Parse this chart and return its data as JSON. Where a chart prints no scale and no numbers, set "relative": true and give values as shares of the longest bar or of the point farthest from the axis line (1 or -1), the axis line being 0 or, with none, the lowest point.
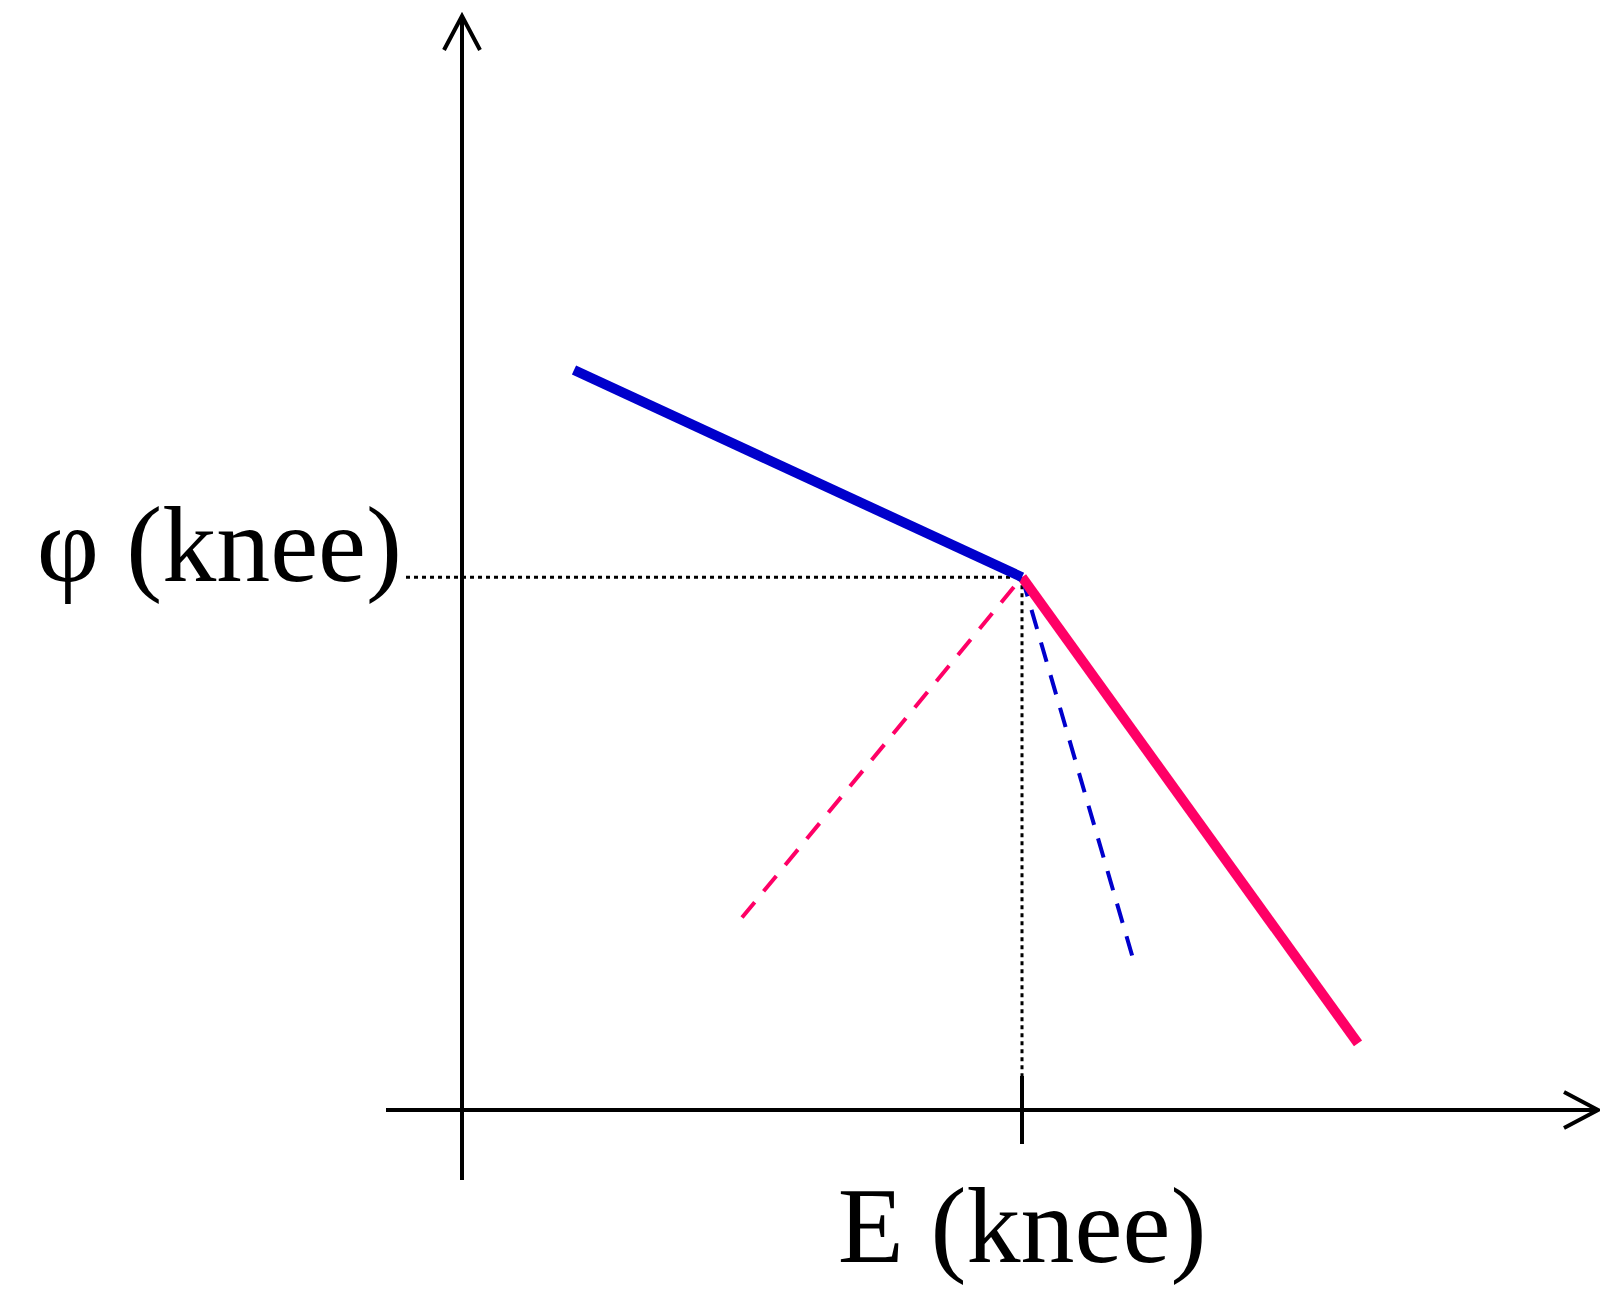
{
  "chart_data": {
    "type": "line",
    "relative": true,
    "categories": [
      null,
      null,
      null,
      null,
      null,
      null,
      null,
      null,
      null,
      null,
      null,
      null,
      null,
      null,
      null
    ],
    "series": [
      {
        "color": "#0000cc",
        "values": [
          1,
          null,
          null,
          null,
          null,
          null,
          null,
          null,
          0.72,
          null,
          null,
          null,
          null,
          null,
          null
        ],
        "line_style": "solid"
      },
      {
        "color": "#ff0066",
        "values": [
          null,
          null,
          null,
          null,
          null,
          null,
          null,
          null,
          0.72,
          null,
          null,
          null,
          null,
          null,
          0.09
        ],
        "line_style": "solid"
      },
      {
        "color": "#ff0066",
        "values": [
          null,
          null,
          null,
          0.26,
          null,
          null,
          null,
          null,
          0.72,
          null,
          null,
          null,
          null,
          null,
          null
        ],
        "line_style": "dashed"
      },
      {
        "color": "#0000cc",
        "values": [
          null,
          null,
          null,
          null,
          null,
          null,
          null,
          null,
          0.72,
          null,
          0.2,
          null,
          null,
          null,
          null
        ],
        "line_style": "dashed"
      }
    ],
    "ref_lines": [
      {
        "axis": "y",
        "value": 0.72,
        "label": "φ (knee)",
        "line_style": "dotted",
        "color": "#000000"
      }
    ],
    "annotations": [
      "E (knee)"
    ],
    "legend": false,
    "marker": "none"
  }
}
